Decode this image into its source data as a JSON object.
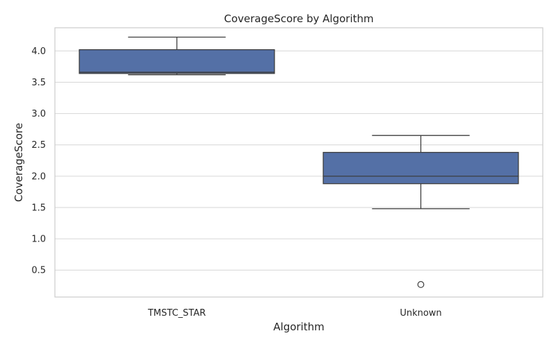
{
  "chart_data": {
    "type": "box",
    "title": "CoverageScore by Algorithm",
    "xlabel": "Algorithm",
    "ylabel": "CoverageScore",
    "ylim": [
      0.07,
      4.37
    ],
    "yticks": [
      "0.5",
      "1.0",
      "1.5",
      "2.0",
      "2.5",
      "3.0",
      "3.5",
      "4.0"
    ],
    "grid": true,
    "categories": [
      "TMSTC_STAR",
      "Unknown"
    ],
    "boxes": [
      {
        "category": "TMSTC_STAR",
        "whisker_low": 3.62,
        "q1": 3.64,
        "median": 3.66,
        "q3": 4.02,
        "whisker_high": 4.22,
        "outliers": []
      },
      {
        "category": "Unknown",
        "whisker_low": 1.48,
        "q1": 1.88,
        "median": 2.0,
        "q3": 2.38,
        "whisker_high": 2.65,
        "outliers": [
          0.27
        ]
      }
    ],
    "colors": {
      "box_fill": "#5470a6",
      "line": "#3d3d3d",
      "grid": "#d6d6d6",
      "spine": "#cccccc"
    }
  }
}
